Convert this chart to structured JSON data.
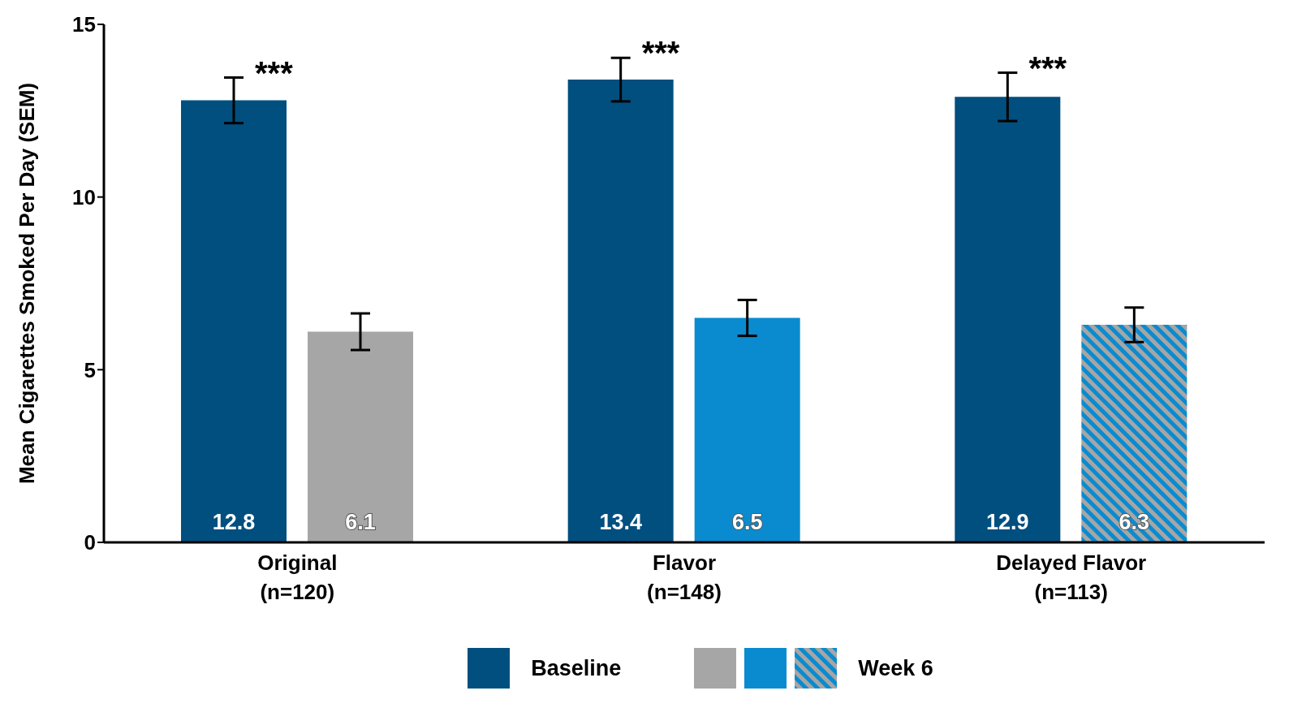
{
  "chart_data": {
    "type": "bar",
    "ylabel": "Mean Cigarettes Smoked Per Day (SEM)",
    "categories": [
      "Original\n(n=120)",
      "Flavor\n(n=148)",
      "Delayed Flavor\n(n=113)"
    ],
    "series": [
      {
        "name": "Baseline",
        "color": "#004f7f",
        "values": [
          12.8,
          13.4,
          12.9
        ],
        "errors": [
          0.66,
          0.63,
          0.7
        ]
      },
      {
        "name": "Week 6",
        "colors": [
          "#a6a6a6",
          "#0a8bd0",
          "#a6a6a6"
        ],
        "values": [
          6.1,
          6.5,
          6.3
        ],
        "errors": [
          0.53,
          0.52,
          0.5
        ]
      }
    ],
    "ylim": [
      0,
      15
    ],
    "yticks": [
      0,
      5,
      10,
      15
    ],
    "legend": "bottom",
    "data_labels": true,
    "annotations": [
      "***",
      "***",
      "***"
    ]
  }
}
